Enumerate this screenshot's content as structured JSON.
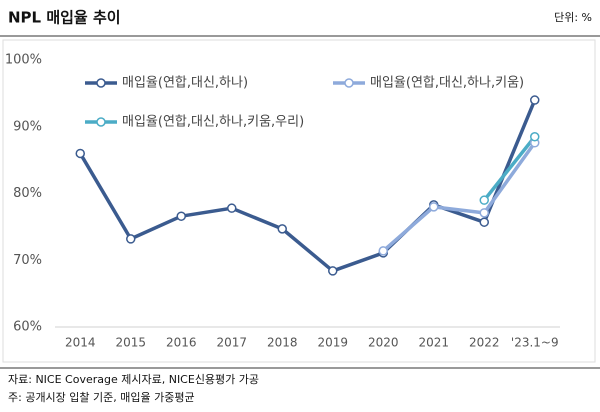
{
  "chart_data": {
    "type": "line",
    "title": "NPL 매입율 추이",
    "unit": "단위: %",
    "categories": [
      "2014",
      "2015",
      "2016",
      "2017",
      "2018",
      "2019",
      "2020",
      "2021",
      "2022",
      "'23.1~9"
    ],
    "series": [
      {
        "name": "매입율(연합,대신,하나)",
        "color": "#3b5b8f",
        "values": [
          86,
          73.2,
          76.6,
          77.8,
          74.7,
          68.4,
          71.1,
          78.3,
          75.7,
          94.0
        ]
      },
      {
        "name": "매입율(연합,대신,하나,키움)",
        "color": "#8eaadb",
        "values": [
          null,
          null,
          null,
          null,
          null,
          null,
          71.4,
          78.0,
          77.1,
          87.6
        ]
      },
      {
        "name": "매입율(연합,대신,하나,키움,우리)",
        "color": "#4bacc6",
        "values": [
          null,
          null,
          null,
          null,
          null,
          null,
          null,
          null,
          79.0,
          88.5
        ]
      }
    ],
    "ylim": [
      60,
      100
    ],
    "yticks": [
      {
        "value": 60,
        "label": "60%"
      },
      {
        "value": 70,
        "label": "70%"
      },
      {
        "value": 80,
        "label": "80%"
      },
      {
        "value": 90,
        "label": "90%"
      },
      {
        "value": 100,
        "label": "100%"
      }
    ],
    "grid": false,
    "notes": [
      "자료: NICE Coverage 제시자료, NICE신용평가 가공",
      "주: 공개시장 입찰 기준, 매입율 가중평균"
    ]
  }
}
